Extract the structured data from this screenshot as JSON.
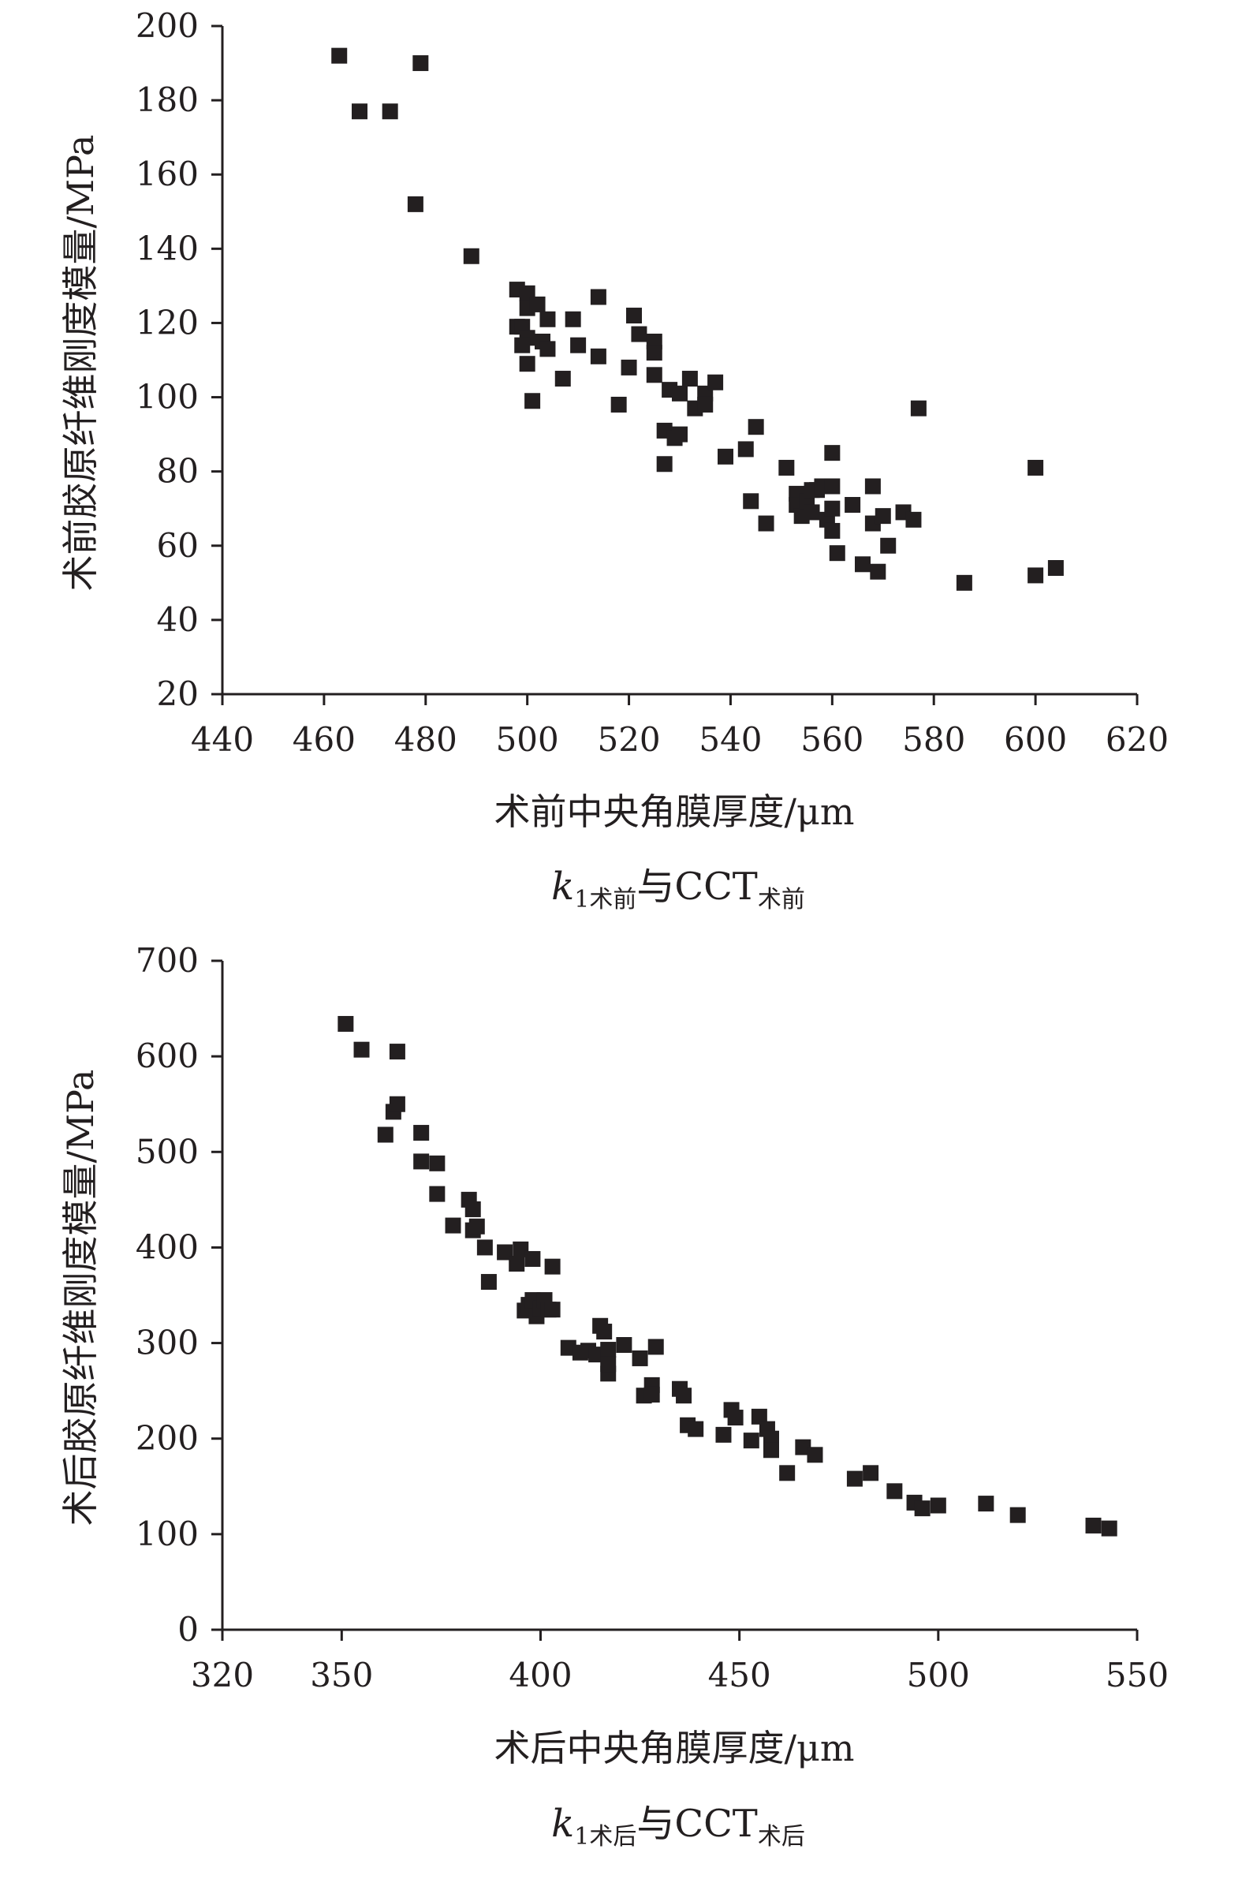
{
  "chart_data": [
    {
      "type": "scatter",
      "xlabel": "术前中央角膜厚度/μm",
      "ylabel": "术前胶原纤维刚度模量/MPa",
      "caption": {
        "main": "k",
        "sub1": "1术前",
        "mid": "与CCT",
        "sub2": "术前"
      },
      "xlim": [
        440,
        620
      ],
      "ylim": [
        20,
        200
      ],
      "xticks": [
        440,
        460,
        480,
        500,
        520,
        540,
        560,
        580,
        600,
        620
      ],
      "yticks": [
        20,
        40,
        60,
        80,
        100,
        120,
        140,
        160,
        180,
        200
      ],
      "marker_color": "#231f20",
      "points": [
        [
          463,
          192
        ],
        [
          467,
          177
        ],
        [
          473,
          177
        ],
        [
          479,
          190
        ],
        [
          478,
          152
        ],
        [
          489,
          138
        ],
        [
          498,
          129
        ],
        [
          498,
          119
        ],
        [
          500,
          128
        ],
        [
          499,
          119
        ],
        [
          500,
          124
        ],
        [
          500,
          116
        ],
        [
          499,
          114
        ],
        [
          500,
          109
        ],
        [
          501,
          99
        ],
        [
          502,
          125
        ],
        [
          503,
          115
        ],
        [
          504,
          121
        ],
        [
          504,
          113
        ],
        [
          507,
          105
        ],
        [
          509,
          121
        ],
        [
          510,
          114
        ],
        [
          514,
          127
        ],
        [
          514,
          111
        ],
        [
          518,
          98
        ],
        [
          520,
          108
        ],
        [
          521,
          122
        ],
        [
          522,
          117
        ],
        [
          525,
          115
        ],
        [
          525,
          112
        ],
        [
          525,
          106
        ],
        [
          527,
          91
        ],
        [
          527,
          82
        ],
        [
          528,
          102
        ],
        [
          529,
          89
        ],
        [
          530,
          101
        ],
        [
          530,
          90
        ],
        [
          532,
          105
        ],
        [
          533,
          97
        ],
        [
          535,
          101
        ],
        [
          535,
          98
        ],
        [
          537,
          104
        ],
        [
          539,
          84
        ],
        [
          543,
          86
        ],
        [
          544,
          72
        ],
        [
          545,
          92
        ],
        [
          547,
          66
        ],
        [
          551,
          81
        ],
        [
          553,
          74
        ],
        [
          553,
          71
        ],
        [
          554,
          68
        ],
        [
          555,
          72
        ],
        [
          556,
          69
        ],
        [
          556,
          75
        ],
        [
          557,
          75
        ],
        [
          558,
          76
        ],
        [
          559,
          67
        ],
        [
          560,
          85
        ],
        [
          560,
          76
        ],
        [
          560,
          70
        ],
        [
          560,
          64
        ],
        [
          561,
          58
        ],
        [
          564,
          71
        ],
        [
          566,
          55
        ],
        [
          568,
          76
        ],
        [
          568,
          66
        ],
        [
          569,
          53
        ],
        [
          570,
          68
        ],
        [
          571,
          60
        ],
        [
          574,
          69
        ],
        [
          576,
          67
        ],
        [
          577,
          97
        ],
        [
          586,
          50
        ],
        [
          600,
          81
        ],
        [
          600,
          52
        ],
        [
          604,
          54
        ]
      ]
    },
    {
      "type": "scatter",
      "xlabel": "术后中央角膜厚度/μm",
      "ylabel": "术后胶原纤维刚度模量/MPa",
      "caption": {
        "main": "k",
        "sub1": "1术后",
        "mid": "与CCT",
        "sub2": "术后"
      },
      "xlim": [
        320,
        550
      ],
      "ylim": [
        0,
        700
      ],
      "xticks": [
        320,
        350,
        400,
        450,
        500,
        550
      ],
      "yticks": [
        0,
        100,
        200,
        300,
        400,
        500,
        600,
        700
      ],
      "marker_color": "#231f20",
      "points": [
        [
          351,
          634
        ],
        [
          355,
          607
        ],
        [
          364,
          605
        ],
        [
          361,
          518
        ],
        [
          363,
          542
        ],
        [
          364,
          550
        ],
        [
          370,
          520
        ],
        [
          370,
          490
        ],
        [
          374,
          488
        ],
        [
          374,
          456
        ],
        [
          378,
          423
        ],
        [
          382,
          450
        ],
        [
          383,
          440
        ],
        [
          383,
          418
        ],
        [
          384,
          422
        ],
        [
          386,
          400
        ],
        [
          387,
          364
        ],
        [
          391,
          395
        ],
        [
          394,
          383
        ],
        [
          395,
          398
        ],
        [
          396,
          334
        ],
        [
          397,
          340
        ],
        [
          398,
          388
        ],
        [
          398,
          345
        ],
        [
          399,
          328
        ],
        [
          400,
          336
        ],
        [
          401,
          345
        ],
        [
          402,
          335
        ],
        [
          403,
          380
        ],
        [
          403,
          335
        ],
        [
          407,
          295
        ],
        [
          410,
          290
        ],
        [
          412,
          292
        ],
        [
          414,
          288
        ],
        [
          415,
          318
        ],
        [
          416,
          312
        ],
        [
          417,
          293
        ],
        [
          417,
          268
        ],
        [
          417,
          278
        ],
        [
          421,
          298
        ],
        [
          425,
          284
        ],
        [
          426,
          245
        ],
        [
          428,
          256
        ],
        [
          428,
          246
        ],
        [
          429,
          296
        ],
        [
          435,
          252
        ],
        [
          436,
          245
        ],
        [
          437,
          214
        ],
        [
          439,
          210
        ],
        [
          446,
          204
        ],
        [
          448,
          230
        ],
        [
          449,
          222
        ],
        [
          453,
          198
        ],
        [
          455,
          223
        ],
        [
          457,
          210
        ],
        [
          458,
          200
        ],
        [
          458,
          188
        ],
        [
          462,
          164
        ],
        [
          466,
          191
        ],
        [
          469,
          183
        ],
        [
          479,
          158
        ],
        [
          483,
          164
        ],
        [
          489,
          145
        ],
        [
          494,
          133
        ],
        [
          496,
          127
        ],
        [
          500,
          130
        ],
        [
          512,
          132
        ],
        [
          520,
          120
        ],
        [
          539,
          109
        ],
        [
          543,
          106
        ]
      ]
    }
  ]
}
